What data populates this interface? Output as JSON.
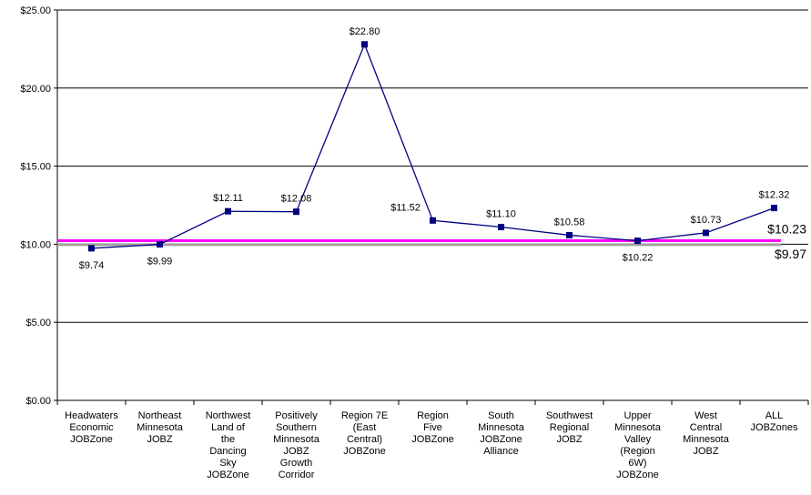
{
  "chart_data": {
    "type": "line",
    "title": "",
    "xlabel": "",
    "ylabel": "",
    "ylim": [
      0,
      25
    ],
    "yticks": [
      "$0.00",
      "$5.00",
      "$10.00",
      "$15.00",
      "$20.00",
      "$25.00"
    ],
    "grid": true,
    "categories": [
      "Headwaters Economic JOBZone",
      "Northeast Minnesota JOBZ",
      "Northwest Land of the Dancing Sky JOBZone",
      "Positively Southern Minnesota JOBZ Growth Corridor",
      "Region 7E (East Central) JOBZone",
      "Region Five JOBZone",
      "South Minnesota JOBZone Alliance",
      "Southwest Regional JOBZ",
      "Upper Minnesota Valley (Region 6W) JOBZone",
      "West Central Minnesota JOBZ",
      "ALL JOBZones"
    ],
    "series": [
      {
        "name": "",
        "color": "#000080",
        "values": [
          9.74,
          9.99,
          12.11,
          12.08,
          22.8,
          11.52,
          11.1,
          10.58,
          10.22,
          10.73,
          12.32
        ],
        "labels": [
          "$9.74",
          "$9.99",
          "$12.11",
          "$12.08",
          "$22.80",
          "$11.52",
          "$11.10",
          "$10.58",
          "$10.22",
          "$10.73",
          "$12.32"
        ]
      }
    ],
    "reference_lines": [
      {
        "value": 10.23,
        "label": "$10.23",
        "color": "#ff00ff"
      },
      {
        "value": 9.97,
        "label": "$9.97",
        "color": "#a0a0a0"
      }
    ]
  }
}
